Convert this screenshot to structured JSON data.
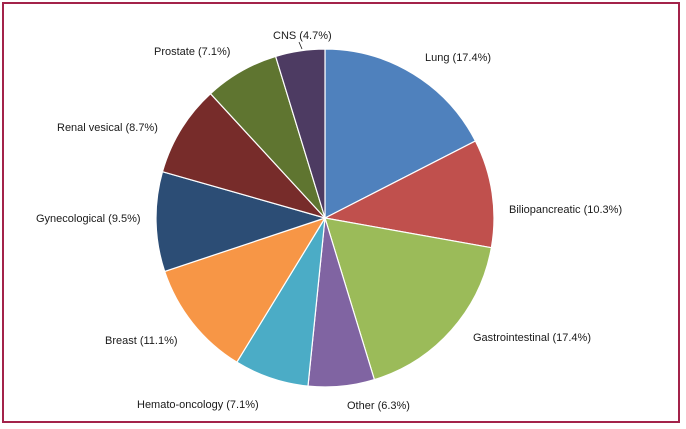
{
  "chart_data": {
    "type": "pie",
    "title": "",
    "start_angle_deg": 0,
    "direction": "clockwise",
    "slices": [
      {
        "name": "Lung",
        "value": 17.4,
        "label": "Lung (17.4%)",
        "color": "#4f81bd"
      },
      {
        "name": "Biliopancreatic",
        "value": 10.3,
        "label": "Biliopancreatic (10.3%)",
        "color": "#c0504d"
      },
      {
        "name": "Gastrointestinal",
        "value": 17.4,
        "label": "Gastrointestinal (17.4%)",
        "color": "#9bbb59"
      },
      {
        "name": "Other",
        "value": 6.3,
        "label": "Other (6.3%)",
        "color": "#8064a2"
      },
      {
        "name": "Hemato-oncology",
        "value": 7.1,
        "label": "Hemato-oncology (7.1%)",
        "color": "#4bacc6"
      },
      {
        "name": "Breast",
        "value": 11.1,
        "label": "Breast (11.1%)",
        "color": "#f79646"
      },
      {
        "name": "Gynecological",
        "value": 9.5,
        "label": "Gynecological (9.5%)",
        "color": "#2c4d75"
      },
      {
        "name": "Renal vesical",
        "value": 8.7,
        "label": "Renal vesical (8.7%)",
        "color": "#772c2a"
      },
      {
        "name": "Prostate",
        "value": 7.1,
        "label": "Prostate (7.1%)",
        "color": "#5f7530"
      },
      {
        "name": "CNS",
        "value": 4.7,
        "label": "CNS (4.7%)",
        "color": "#4d3b62"
      }
    ],
    "border_color": "#a3234a"
  }
}
